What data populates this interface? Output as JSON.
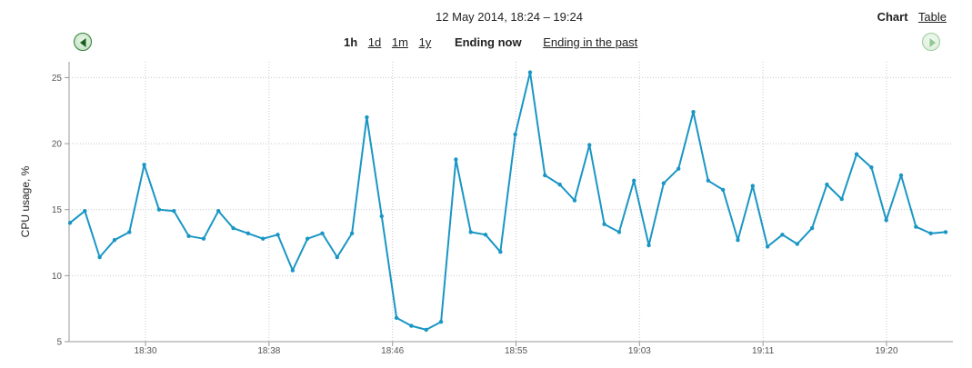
{
  "header": {
    "date_range": "12 May 2014, 18:24 – 19:24",
    "view_modes": [
      {
        "label": "Chart",
        "active": true
      },
      {
        "label": "Table",
        "active": false
      }
    ],
    "periods": [
      {
        "label": "1h",
        "active": true
      },
      {
        "label": "1d",
        "active": false
      },
      {
        "label": "1m",
        "active": false
      },
      {
        "label": "1y",
        "active": false
      }
    ],
    "mode_current": "Ending now",
    "mode_past": "Ending in the past",
    "prev_icon": "left-arrow-icon",
    "next_icon": "right-arrow-icon"
  },
  "colors": {
    "series": "#1a96c4",
    "nav_active": "#2e7d32",
    "nav_disabled": "#9ccd9c"
  },
  "chart_data": {
    "type": "line",
    "title": "",
    "xlabel": "",
    "ylabel": "CPU usage, %",
    "ylim": [
      5,
      26.2
    ],
    "yticks": [
      5,
      10,
      15,
      20,
      25
    ],
    "xtick_labels": [
      "18:30",
      "18:38",
      "18:46",
      "18:55",
      "19:03",
      "19:11",
      "19:20"
    ],
    "grid": true,
    "series": [
      {
        "name": "",
        "values": [
          14.0,
          14.9,
          11.4,
          12.7,
          13.3,
          18.4,
          15.0,
          14.9,
          13.0,
          12.8,
          14.9,
          13.6,
          13.2,
          12.8,
          13.1,
          10.4,
          12.8,
          13.2,
          11.4,
          13.2,
          22.0,
          14.5,
          6.8,
          6.2,
          5.9,
          6.5,
          18.8,
          13.3,
          13.1,
          11.8,
          20.7,
          25.4,
          17.6,
          16.9,
          15.7,
          19.9,
          13.9,
          13.3,
          17.2,
          12.3,
          17.0,
          18.1,
          22.4,
          17.2,
          16.5,
          12.7,
          16.8,
          12.2,
          13.1,
          12.4,
          13.6,
          16.9,
          15.8,
          19.2,
          18.2,
          14.2,
          17.6,
          13.7,
          13.2,
          13.3
        ]
      }
    ]
  }
}
